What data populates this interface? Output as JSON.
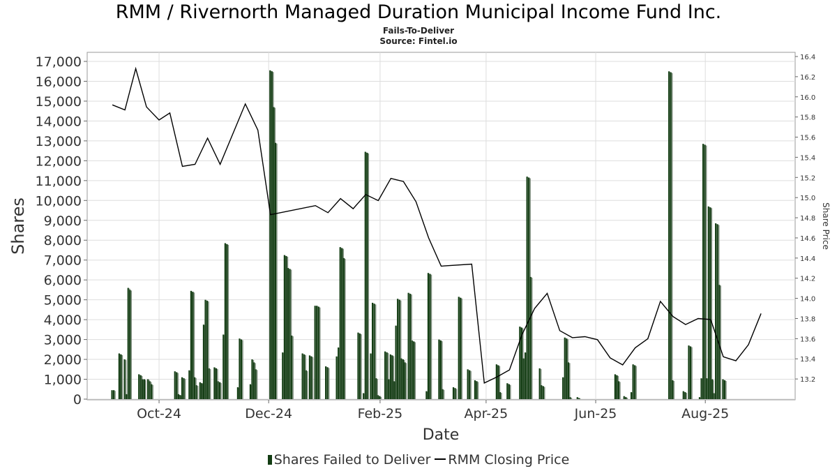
{
  "header": {
    "title": "RMM / Rivernorth Managed Duration Municipal Income Fund Inc.",
    "subtitle": "Fails-To-Deliver",
    "source": "Source: Fintel.io"
  },
  "legend": {
    "bars_label": "Shares Failed to Deliver",
    "line_label": "RMM Closing Price"
  },
  "colors": {
    "bar_dark": "#133d13",
    "bar_light": "#7f8f7f",
    "line": "#000000",
    "grid": "#dddddd"
  },
  "chart_data": {
    "type": "bar+line",
    "xlabel": "Date",
    "ylabel": "Shares",
    "y2label": "Share Price",
    "x_ticks": [
      "Oct-24",
      "Dec-24",
      "Feb-25",
      "Apr-25",
      "Jun-25",
      "Aug-25"
    ],
    "y_ticks": [
      "0",
      "1,000",
      "2,000",
      "3,000",
      "4,000",
      "5,000",
      "6,000",
      "7,000",
      "8,000",
      "9,000",
      "10,000",
      "11,000",
      "12,000",
      "13,000",
      "14,000",
      "15,000",
      "16,000",
      "17,000"
    ],
    "y2_ticks": [
      "13.2",
      "13.4",
      "13.6",
      "13.8",
      "14.0",
      "14.2",
      "14.4",
      "14.6",
      "14.8",
      "15.0",
      "15.2",
      "15.4",
      "15.6",
      "15.8",
      "16.0",
      "16.2",
      "16.4"
    ],
    "ylim": [
      0,
      17000
    ],
    "y2lim": [
      13.0,
      16.4
    ],
    "xlim": [
      "2024-08-22",
      "2025-09-20"
    ],
    "series": [
      {
        "name": "Shares Failed to Deliver",
        "kind": "bar",
        "points": [
          [
            "2024-09-05",
            450
          ],
          [
            "2024-09-06",
            450
          ],
          [
            "2024-09-09",
            2300
          ],
          [
            "2024-09-10",
            2250
          ],
          [
            "2024-09-12",
            2000
          ],
          [
            "2024-09-13",
            250
          ],
          [
            "2024-09-14",
            5600
          ],
          [
            "2024-09-15",
            5500
          ],
          [
            "2024-09-20",
            1250
          ],
          [
            "2024-09-21",
            1200
          ],
          [
            "2024-09-22",
            1000
          ],
          [
            "2024-09-23",
            1000
          ],
          [
            "2024-09-25",
            1000
          ],
          [
            "2024-09-26",
            900
          ],
          [
            "2024-09-27",
            750
          ],
          [
            "2024-10-10",
            1400
          ],
          [
            "2024-10-11",
            1350
          ],
          [
            "2024-10-12",
            250
          ],
          [
            "2024-10-13",
            200
          ],
          [
            "2024-10-14",
            1100
          ],
          [
            "2024-10-15",
            1050
          ],
          [
            "2024-10-18",
            1450
          ],
          [
            "2024-10-19",
            5450
          ],
          [
            "2024-10-20",
            5400
          ],
          [
            "2024-10-21",
            1100
          ],
          [
            "2024-10-22",
            700
          ],
          [
            "2024-10-24",
            850
          ],
          [
            "2024-10-25",
            800
          ],
          [
            "2024-10-26",
            3750
          ],
          [
            "2024-10-27",
            5000
          ],
          [
            "2024-10-28",
            4950
          ],
          [
            "2024-10-29",
            1550
          ],
          [
            "2024-11-01",
            1600
          ],
          [
            "2024-11-02",
            1550
          ],
          [
            "2024-11-03",
            900
          ],
          [
            "2024-11-04",
            850
          ],
          [
            "2024-11-06",
            3250
          ],
          [
            "2024-11-07",
            7850
          ],
          [
            "2024-11-08",
            7800
          ],
          [
            "2024-11-14",
            600
          ],
          [
            "2024-11-15",
            3050
          ],
          [
            "2024-11-16",
            3000
          ],
          [
            "2024-11-21",
            750
          ],
          [
            "2024-11-22",
            2000
          ],
          [
            "2024-11-23",
            1850
          ],
          [
            "2024-11-24",
            1500
          ],
          [
            "2024-12-02",
            16550
          ],
          [
            "2024-12-03",
            16500
          ],
          [
            "2024-12-04",
            14700
          ],
          [
            "2024-12-05",
            12900
          ],
          [
            "2024-12-09",
            2350
          ],
          [
            "2024-12-10",
            7250
          ],
          [
            "2024-12-11",
            7200
          ],
          [
            "2024-12-12",
            6600
          ],
          [
            "2024-12-13",
            6550
          ],
          [
            "2024-12-14",
            3200
          ],
          [
            "2024-12-20",
            2300
          ],
          [
            "2024-12-21",
            2250
          ],
          [
            "2024-12-22",
            1450
          ],
          [
            "2024-12-24",
            2200
          ],
          [
            "2024-12-25",
            2150
          ],
          [
            "2024-12-27",
            4700
          ],
          [
            "2024-12-28",
            4700
          ],
          [
            "2024-12-29",
            4650
          ],
          [
            "2025-01-02",
            1650
          ],
          [
            "2025-01-03",
            1600
          ],
          [
            "2025-01-08",
            2150
          ],
          [
            "2025-01-09",
            2600
          ],
          [
            "2025-01-10",
            7650
          ],
          [
            "2025-01-11",
            7600
          ],
          [
            "2025-01-12",
            7100
          ],
          [
            "2025-01-20",
            3350
          ],
          [
            "2025-01-21",
            3300
          ],
          [
            "2025-01-23",
            300
          ],
          [
            "2025-01-24",
            12450
          ],
          [
            "2025-01-25",
            12400
          ],
          [
            "2025-01-27",
            2300
          ],
          [
            "2025-01-28",
            4850
          ],
          [
            "2025-01-29",
            4800
          ],
          [
            "2025-01-30",
            1050
          ],
          [
            "2025-01-31",
            200
          ],
          [
            "2025-02-01",
            150
          ],
          [
            "2025-02-04",
            2400
          ],
          [
            "2025-02-05",
            2350
          ],
          [
            "2025-02-06",
            1000
          ],
          [
            "2025-02-07",
            2250
          ],
          [
            "2025-02-08",
            2200
          ],
          [
            "2025-02-09",
            900
          ],
          [
            "2025-02-10",
            3700
          ],
          [
            "2025-02-11",
            5050
          ],
          [
            "2025-02-12",
            5000
          ],
          [
            "2025-02-13",
            2050
          ],
          [
            "2025-02-14",
            2000
          ],
          [
            "2025-02-15",
            1850
          ],
          [
            "2025-02-17",
            5350
          ],
          [
            "2025-02-18",
            5300
          ],
          [
            "2025-02-19",
            2950
          ],
          [
            "2025-02-20",
            2900
          ],
          [
            "2025-02-27",
            400
          ],
          [
            "2025-02-28",
            6350
          ],
          [
            "2025-03-01",
            6300
          ],
          [
            "2025-03-06",
            3000
          ],
          [
            "2025-03-07",
            2950
          ],
          [
            "2025-03-08",
            500
          ],
          [
            "2025-03-14",
            600
          ],
          [
            "2025-03-15",
            550
          ],
          [
            "2025-03-17",
            5150
          ],
          [
            "2025-03-18",
            5100
          ],
          [
            "2025-03-22",
            1500
          ],
          [
            "2025-03-23",
            1450
          ],
          [
            "2025-03-26",
            950
          ],
          [
            "2025-03-27",
            900
          ],
          [
            "2025-04-07",
            1750
          ],
          [
            "2025-04-08",
            1700
          ],
          [
            "2025-04-09",
            350
          ],
          [
            "2025-04-13",
            800
          ],
          [
            "2025-04-14",
            750
          ],
          [
            "2025-04-20",
            3650
          ],
          [
            "2025-04-21",
            3600
          ],
          [
            "2025-04-22",
            2050
          ],
          [
            "2025-04-23",
            2350
          ],
          [
            "2025-04-24",
            11200
          ],
          [
            "2025-04-25",
            11150
          ],
          [
            "2025-04-26",
            6150
          ],
          [
            "2025-05-01",
            1550
          ],
          [
            "2025-05-02",
            700
          ],
          [
            "2025-05-03",
            650
          ],
          [
            "2025-05-14",
            1100
          ],
          [
            "2025-05-15",
            3100
          ],
          [
            "2025-05-16",
            3050
          ],
          [
            "2025-05-17",
            1850
          ],
          [
            "2025-05-18",
            100
          ],
          [
            "2025-05-22",
            100
          ],
          [
            "2025-05-23",
            50
          ],
          [
            "2025-06-12",
            1250
          ],
          [
            "2025-06-13",
            1200
          ],
          [
            "2025-06-14",
            900
          ],
          [
            "2025-06-17",
            150
          ],
          [
            "2025-06-18",
            100
          ],
          [
            "2025-06-21",
            350
          ],
          [
            "2025-06-22",
            1750
          ],
          [
            "2025-06-23",
            1700
          ],
          [
            "2025-07-12",
            16500
          ],
          [
            "2025-07-13",
            16450
          ],
          [
            "2025-07-14",
            950
          ],
          [
            "2025-07-20",
            400
          ],
          [
            "2025-07-21",
            350
          ],
          [
            "2025-07-23",
            2700
          ],
          [
            "2025-07-24",
            2650
          ],
          [
            "2025-07-29",
            100
          ],
          [
            "2025-07-30",
            1050
          ],
          [
            "2025-07-31",
            12850
          ],
          [
            "2025-08-01",
            12800
          ],
          [
            "2025-08-02",
            1050
          ],
          [
            "2025-08-03",
            9700
          ],
          [
            "2025-08-04",
            9650
          ],
          [
            "2025-08-05",
            1000
          ],
          [
            "2025-08-06",
            300
          ],
          [
            "2025-08-07",
            8850
          ],
          [
            "2025-08-08",
            8800
          ],
          [
            "2025-08-09",
            5750
          ],
          [
            "2025-08-11",
            1000
          ],
          [
            "2025-08-12",
            950
          ]
        ]
      },
      {
        "name": "RMM Closing Price",
        "kind": "line",
        "axis": "right",
        "points": [
          [
            "2024-09-05",
            15.92
          ],
          [
            "2024-09-12",
            15.87
          ],
          [
            "2024-09-18",
            16.28
          ],
          [
            "2024-09-24",
            15.9
          ],
          [
            "2024-10-01",
            15.77
          ],
          [
            "2024-10-07",
            15.84
          ],
          [
            "2024-10-14",
            15.31
          ],
          [
            "2024-10-21",
            15.33
          ],
          [
            "2024-10-28",
            15.59
          ],
          [
            "2024-11-04",
            15.33
          ],
          [
            "2024-11-18",
            15.93
          ],
          [
            "2024-11-25",
            15.67
          ],
          [
            "2024-12-02",
            14.83
          ],
          [
            "2024-12-27",
            14.92
          ],
          [
            "2025-01-03",
            14.85
          ],
          [
            "2025-01-10",
            14.99
          ],
          [
            "2025-01-17",
            14.89
          ],
          [
            "2025-01-24",
            15.03
          ],
          [
            "2025-01-31",
            14.97
          ],
          [
            "2025-02-07",
            15.19
          ],
          [
            "2025-02-14",
            15.16
          ],
          [
            "2025-02-21",
            14.96
          ],
          [
            "2025-02-28",
            14.6
          ],
          [
            "2025-03-07",
            14.32
          ],
          [
            "2025-03-24",
            14.34
          ],
          [
            "2025-03-31",
            13.16
          ],
          [
            "2025-04-07",
            13.22
          ],
          [
            "2025-04-14",
            13.29
          ],
          [
            "2025-04-21",
            13.64
          ],
          [
            "2025-04-28",
            13.9
          ],
          [
            "2025-05-05",
            14.05
          ],
          [
            "2025-05-12",
            13.68
          ],
          [
            "2025-05-19",
            13.61
          ],
          [
            "2025-05-26",
            13.62
          ],
          [
            "2025-06-02",
            13.59
          ],
          [
            "2025-06-09",
            13.41
          ],
          [
            "2025-06-16",
            13.34
          ],
          [
            "2025-06-23",
            13.51
          ],
          [
            "2025-06-30",
            13.6
          ],
          [
            "2025-07-07",
            13.97
          ],
          [
            "2025-07-14",
            13.82
          ],
          [
            "2025-07-21",
            13.74
          ],
          [
            "2025-07-28",
            13.8
          ],
          [
            "2025-08-04",
            13.79
          ],
          [
            "2025-08-11",
            13.42
          ],
          [
            "2025-08-18",
            13.38
          ],
          [
            "2025-08-25",
            13.54
          ],
          [
            "2025-09-01",
            13.85
          ]
        ]
      }
    ]
  }
}
